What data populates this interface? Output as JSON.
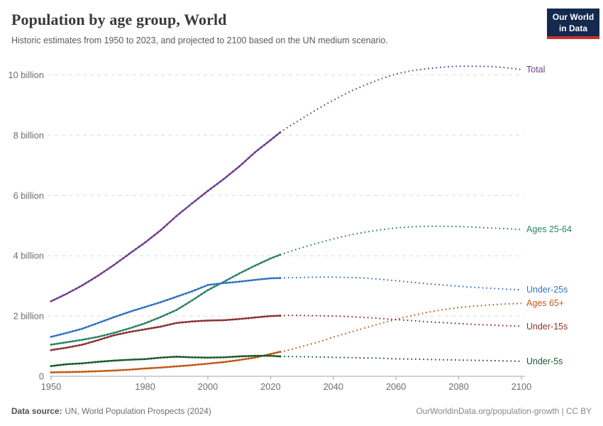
{
  "header": {
    "title": "Population by age group, World",
    "subtitle": "Historic estimates from 1950 to 2023, and projected to 2100 based on the UN medium scenario.",
    "logo": {
      "line1": "Our World",
      "line2": "in Data",
      "bg_color": "#13294d",
      "accent_color": "#c7302f"
    }
  },
  "footer": {
    "source_label": "Data source:",
    "source_text": "UN, World Population Prospects (2024)",
    "link_text": "OurWorldinData.org/population-growth | CC BY"
  },
  "chart_data": {
    "type": "line",
    "title": "Population by age group, World",
    "xlabel": "",
    "ylabel": "",
    "unit": "billion people",
    "grid": "horizontal-dashed",
    "legend_position": "right-end-labels",
    "xlim": [
      1948,
      2102
    ],
    "ylim": [
      0,
      10.5
    ],
    "x_ticks": [
      1950,
      1980,
      2000,
      2020,
      2040,
      2060,
      2080,
      2100
    ],
    "y_ticks": [
      {
        "value": 0,
        "label": "0"
      },
      {
        "value": 2,
        "label": "2 billion"
      },
      {
        "value": 4,
        "label": "4 billion"
      },
      {
        "value": 6,
        "label": "6 billion"
      },
      {
        "value": 8,
        "label": "8 billion"
      },
      {
        "value": 10,
        "label": "10 billion"
      }
    ],
    "projection_start_year": 2023,
    "series": [
      {
        "name": "Total",
        "color": "#6d3e91",
        "historic": {
          "years": [
            1950,
            1955,
            1960,
            1965,
            1970,
            1975,
            1980,
            1985,
            1990,
            1995,
            2000,
            2005,
            2010,
            2015,
            2020,
            2023
          ],
          "values": [
            2.49,
            2.74,
            3.02,
            3.34,
            3.69,
            4.07,
            4.44,
            4.85,
            5.32,
            5.74,
            6.15,
            6.54,
            6.96,
            7.43,
            7.84,
            8.09
          ]
        },
        "projection": {
          "years": [
            2023,
            2025,
            2030,
            2035,
            2040,
            2045,
            2050,
            2055,
            2060,
            2065,
            2070,
            2075,
            2080,
            2085,
            2090,
            2095,
            2100
          ],
          "values": [
            8.09,
            8.23,
            8.55,
            8.87,
            9.16,
            9.43,
            9.66,
            9.86,
            10.03,
            10.14,
            10.21,
            10.26,
            10.29,
            10.29,
            10.28,
            10.24,
            10.18
          ]
        }
      },
      {
        "name": "Ages 25-64",
        "color": "#2c8465",
        "historic": {
          "years": [
            1950,
            1955,
            1960,
            1965,
            1970,
            1975,
            1980,
            1985,
            1990,
            1995,
            2000,
            2005,
            2010,
            2015,
            2020,
            2023
          ],
          "values": [
            1.05,
            1.13,
            1.21,
            1.31,
            1.44,
            1.59,
            1.76,
            1.97,
            2.2,
            2.52,
            2.86,
            3.13,
            3.41,
            3.67,
            3.91,
            4.03
          ]
        },
        "projection": {
          "years": [
            2023,
            2025,
            2030,
            2035,
            2040,
            2045,
            2050,
            2055,
            2060,
            2065,
            2070,
            2075,
            2080,
            2085,
            2090,
            2095,
            2100
          ],
          "values": [
            4.03,
            4.1,
            4.27,
            4.42,
            4.56,
            4.68,
            4.78,
            4.86,
            4.92,
            4.96,
            4.98,
            4.98,
            4.97,
            4.95,
            4.92,
            4.9,
            4.87
          ]
        }
      },
      {
        "name": "Under-25s",
        "color": "#3573c4",
        "historic": {
          "years": [
            1950,
            1955,
            1960,
            1965,
            1970,
            1975,
            1980,
            1985,
            1990,
            1995,
            2000,
            2005,
            2010,
            2015,
            2020,
            2023
          ],
          "values": [
            1.31,
            1.44,
            1.58,
            1.77,
            1.96,
            2.14,
            2.3,
            2.46,
            2.64,
            2.82,
            3.03,
            3.09,
            3.14,
            3.2,
            3.25,
            3.26
          ]
        },
        "projection": {
          "years": [
            2023,
            2025,
            2030,
            2035,
            2040,
            2045,
            2050,
            2055,
            2060,
            2065,
            2070,
            2075,
            2080,
            2085,
            2090,
            2095,
            2100
          ],
          "values": [
            3.26,
            3.27,
            3.28,
            3.29,
            3.29,
            3.28,
            3.26,
            3.22,
            3.17,
            3.12,
            3.07,
            3.03,
            2.99,
            2.95,
            2.92,
            2.89,
            2.87
          ]
        }
      },
      {
        "name": "Ages 65+",
        "color": "#c05917",
        "historic": {
          "years": [
            1950,
            1955,
            1960,
            1965,
            1970,
            1975,
            1980,
            1985,
            1990,
            1995,
            2000,
            2005,
            2010,
            2015,
            2020,
            2023
          ],
          "values": [
            0.13,
            0.14,
            0.15,
            0.17,
            0.19,
            0.22,
            0.26,
            0.29,
            0.33,
            0.37,
            0.42,
            0.47,
            0.54,
            0.62,
            0.74,
            0.81
          ]
        },
        "projection": {
          "years": [
            2023,
            2025,
            2030,
            2035,
            2040,
            2045,
            2050,
            2055,
            2060,
            2065,
            2070,
            2075,
            2080,
            2085,
            2090,
            2095,
            2100
          ],
          "values": [
            0.81,
            0.85,
            0.99,
            1.13,
            1.3,
            1.45,
            1.6,
            1.75,
            1.89,
            2.01,
            2.12,
            2.21,
            2.28,
            2.33,
            2.37,
            2.4,
            2.42
          ]
        }
      },
      {
        "name": "Under-15s",
        "color": "#8c3036",
        "historic": {
          "years": [
            1950,
            1955,
            1960,
            1965,
            1970,
            1975,
            1980,
            1985,
            1990,
            1995,
            2000,
            2005,
            2010,
            2015,
            2020,
            2023
          ],
          "values": [
            0.87,
            0.95,
            1.05,
            1.2,
            1.36,
            1.47,
            1.56,
            1.65,
            1.77,
            1.82,
            1.85,
            1.86,
            1.9,
            1.95,
            2.0,
            2.01
          ]
        },
        "projection": {
          "years": [
            2023,
            2025,
            2030,
            2035,
            2040,
            2045,
            2050,
            2055,
            2060,
            2065,
            2070,
            2075,
            2080,
            2085,
            2090,
            2095,
            2100
          ],
          "values": [
            2.01,
            2.02,
            2.02,
            2.01,
            2.0,
            1.98,
            1.95,
            1.92,
            1.88,
            1.85,
            1.81,
            1.78,
            1.75,
            1.72,
            1.7,
            1.68,
            1.66
          ]
        }
      },
      {
        "name": "Under-5s",
        "color": "#1b5a2e",
        "historic": {
          "years": [
            1950,
            1955,
            1960,
            1965,
            1970,
            1975,
            1980,
            1985,
            1990,
            1995,
            2000,
            2005,
            2010,
            2015,
            2020,
            2023
          ],
          "values": [
            0.34,
            0.4,
            0.43,
            0.48,
            0.52,
            0.55,
            0.57,
            0.62,
            0.65,
            0.63,
            0.62,
            0.63,
            0.66,
            0.68,
            0.68,
            0.66
          ]
        },
        "projection": {
          "years": [
            2023,
            2025,
            2030,
            2035,
            2040,
            2045,
            2050,
            2055,
            2060,
            2065,
            2070,
            2075,
            2080,
            2085,
            2090,
            2095,
            2100
          ],
          "values": [
            0.66,
            0.66,
            0.65,
            0.64,
            0.63,
            0.62,
            0.61,
            0.6,
            0.58,
            0.57,
            0.56,
            0.55,
            0.54,
            0.53,
            0.52,
            0.51,
            0.5
          ]
        }
      }
    ]
  }
}
